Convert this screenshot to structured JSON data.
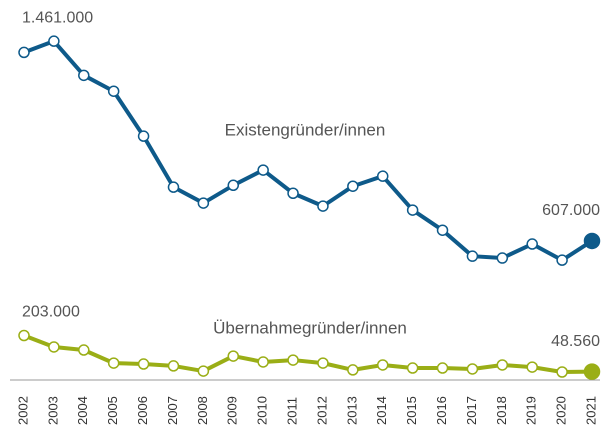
{
  "chart_data": {
    "type": "line",
    "categories": [
      "2002",
      "2003",
      "2004",
      "2005",
      "2006",
      "2007",
      "2008",
      "2009",
      "2010",
      "2011",
      "2012",
      "2013",
      "2014",
      "2015",
      "2016",
      "2017",
      "2018",
      "2019",
      "2020",
      "2021"
    ],
    "ylim": [
      0,
      1560000
    ],
    "series": [
      {
        "name": "Existengründer/innen",
        "color": "#0e5a8a",
        "values": [
          1413000,
          1461000,
          1315000,
          1247000,
          1055000,
          837000,
          769000,
          845000,
          910000,
          811000,
          756000,
          841000,
          884000,
          739000,
          653000,
          542000,
          534000,
          594000,
          525000,
          607000
        ],
        "value_labels": [
          null,
          "1.461.000",
          null,
          null,
          null,
          null,
          null,
          null,
          null,
          null,
          null,
          null,
          null,
          null,
          null,
          null,
          null,
          null,
          null,
          "607.000"
        ]
      },
      {
        "name": "Übernahmegründer/innen",
        "color": "#9aae16",
        "values": [
          203000,
          154000,
          141000,
          85000,
          81000,
          73000,
          51000,
          115000,
          90000,
          98000,
          85000,
          56000,
          77000,
          64000,
          64000,
          60000,
          77000,
          68000,
          47000,
          48560
        ],
        "value_labels": [
          "203.000",
          null,
          null,
          null,
          null,
          null,
          null,
          null,
          null,
          null,
          null,
          null,
          null,
          null,
          null,
          null,
          null,
          null,
          null,
          "48.560"
        ]
      }
    ]
  }
}
